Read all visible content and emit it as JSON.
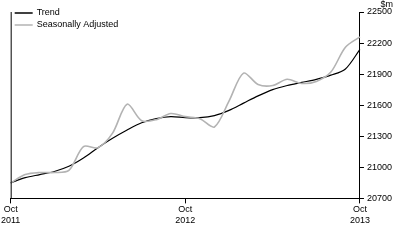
{
  "chart_data": {
    "type": "line",
    "y_label": "$m",
    "categories": [
      "Oct 2011",
      null,
      null,
      null,
      null,
      null,
      null,
      null,
      null,
      null,
      null,
      null,
      "Oct 2012",
      null,
      null,
      null,
      null,
      null,
      null,
      null,
      null,
      null,
      null,
      null,
      "Oct 2013"
    ],
    "series": [
      {
        "name": "Trend",
        "color": "#000000",
        "values": [
          20850,
          20900,
          20930,
          20960,
          21010,
          21090,
          21190,
          21280,
          21360,
          21430,
          21470,
          21490,
          21480,
          21480,
          21500,
          21550,
          21620,
          21690,
          21750,
          21790,
          21820,
          21850,
          21890,
          21950,
          22140
        ]
      },
      {
        "name": "Seasonally Adjusted",
        "color": "#b3b3b3",
        "values": [
          20850,
          20930,
          20950,
          20950,
          20970,
          21200,
          21190,
          21330,
          21610,
          21450,
          21460,
          21520,
          21490,
          21470,
          21390,
          21640,
          21910,
          21800,
          21790,
          21850,
          21810,
          21830,
          21920,
          22160,
          22260
        ]
      }
    ],
    "ylim": [
      20700,
      22500
    ],
    "yticks": [
      20700,
      21000,
      21300,
      21600,
      21900,
      22200,
      22500
    ],
    "grid": false,
    "legend": "upper left"
  }
}
